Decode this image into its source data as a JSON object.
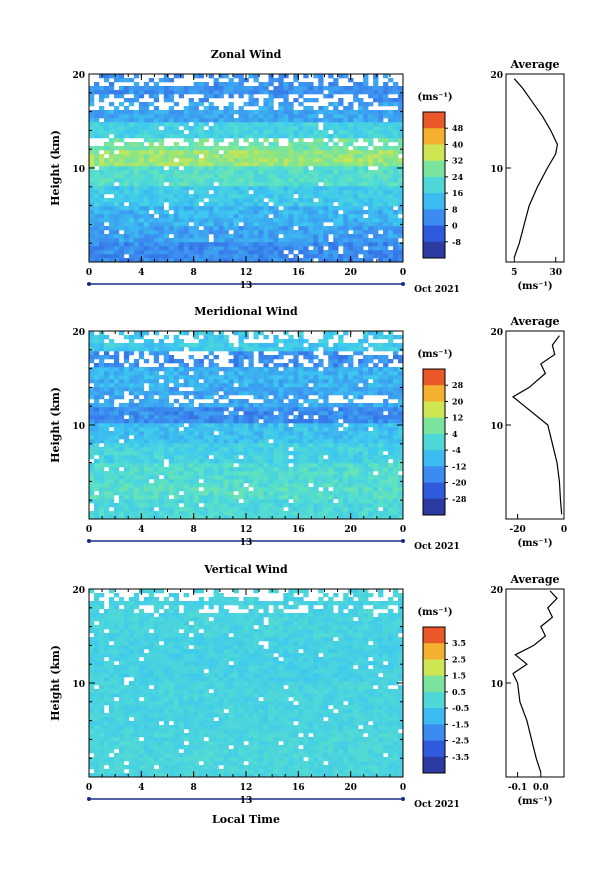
{
  "figure": {
    "x_label": "Local Time",
    "date_label": "Oct 2021",
    "day_label": "13",
    "y_label": "Height (km)",
    "unit_label": "(ms⁻¹)",
    "profile_title": "Average"
  },
  "chart_data": [
    {
      "type": "heatmap",
      "title": "Zonal Wind",
      "xlabel": "",
      "ylabel": "Height (km)",
      "xlim": [
        0,
        24
      ],
      "ylim": [
        0,
        20
      ],
      "x_ticks": [
        "0",
        "4",
        "8",
        "12",
        "16",
        "20",
        "0"
      ],
      "y_ticks": [
        "10",
        "20"
      ],
      "colorbar": {
        "unit": "(ms⁻¹)",
        "ticks": [
          "48",
          "40",
          "32",
          "24",
          "16",
          "8",
          "0",
          "-8"
        ],
        "range": [
          -12,
          52
        ]
      },
      "layers": [
        {
          "z": [
            0,
            2
          ],
          "value": 6
        },
        {
          "z": [
            2,
            4
          ],
          "value": 9
        },
        {
          "z": [
            4,
            6
          ],
          "value": 12
        },
        {
          "z": [
            6,
            8
          ],
          "value": 16
        },
        {
          "z": [
            8,
            10
          ],
          "value": 22
        },
        {
          "z": [
            10,
            12
          ],
          "value": 30
        },
        {
          "z": [
            12,
            13
          ],
          "value": 26
        },
        {
          "z": [
            13,
            15
          ],
          "value": 18
        },
        {
          "z": [
            15,
            17
          ],
          "value": 10
        },
        {
          "z": [
            17,
            20
          ],
          "value": 7
        }
      ],
      "profile": {
        "title": "Average",
        "xlabel": "(ms⁻¹)",
        "x_ticks": [
          "5",
          "30"
        ],
        "xlim": [
          0,
          35
        ],
        "points": [
          [
            5,
            0.5
          ],
          [
            8,
            2
          ],
          [
            11,
            4
          ],
          [
            14,
            6
          ],
          [
            19,
            8
          ],
          [
            25,
            10
          ],
          [
            30,
            11.5
          ],
          [
            31,
            12.5
          ],
          [
            27,
            14
          ],
          [
            22,
            15.5
          ],
          [
            16,
            17
          ],
          [
            10,
            18.5
          ],
          [
            5,
            19.5
          ]
        ]
      }
    },
    {
      "type": "heatmap",
      "title": "Meridional Wind",
      "xlabel": "",
      "ylabel": "Height (km)",
      "xlim": [
        0,
        24
      ],
      "ylim": [
        0,
        20
      ],
      "x_ticks": [
        "0",
        "4",
        "8",
        "12",
        "16",
        "20",
        "0"
      ],
      "y_ticks": [
        "10",
        "20"
      ],
      "colorbar": {
        "unit": "(ms⁻¹)",
        "ticks": [
          "28",
          "20",
          "12",
          "4",
          "-4",
          "-12",
          "-20",
          "-28"
        ],
        "range": [
          -32,
          32
        ]
      },
      "layers": [
        {
          "z": [
            0,
            2
          ],
          "value": 0
        },
        {
          "z": [
            2,
            4
          ],
          "value": 2
        },
        {
          "z": [
            4,
            6
          ],
          "value": 1
        },
        {
          "z": [
            6,
            8
          ],
          "value": -2
        },
        {
          "z": [
            8,
            10
          ],
          "value": -6
        },
        {
          "z": [
            10,
            12
          ],
          "value": -14
        },
        {
          "z": [
            12,
            14
          ],
          "value": -10
        },
        {
          "z": [
            14,
            16
          ],
          "value": -8
        },
        {
          "z": [
            16,
            18
          ],
          "value": -14
        },
        {
          "z": [
            18,
            20
          ],
          "value": -4
        }
      ],
      "profile": {
        "title": "Average",
        "xlabel": "(ms⁻¹)",
        "x_ticks": [
          "-20",
          "0"
        ],
        "xlim": [
          -25,
          0
        ],
        "points": [
          [
            -1,
            0.5
          ],
          [
            -1.5,
            2
          ],
          [
            -2,
            4
          ],
          [
            -3,
            6
          ],
          [
            -5,
            8
          ],
          [
            -7,
            10
          ],
          [
            -17,
            12
          ],
          [
            -22,
            13
          ],
          [
            -15,
            14
          ],
          [
            -8,
            15.5
          ],
          [
            -10,
            16.5
          ],
          [
            -4,
            17.5
          ],
          [
            -5,
            18.5
          ],
          [
            -2,
            19.5
          ]
        ]
      }
    },
    {
      "type": "heatmap",
      "title": "Vertical Wind",
      "xlabel": "Local Time",
      "ylabel": "Height (km)",
      "xlim": [
        0,
        24
      ],
      "ylim": [
        0,
        20
      ],
      "x_ticks": [
        "0",
        "4",
        "8",
        "12",
        "16",
        "20",
        "0"
      ],
      "y_ticks": [
        "10",
        "20"
      ],
      "colorbar": {
        "unit": "(ms⁻¹)",
        "ticks": [
          "3.5",
          "2.5",
          "1.5",
          "0.5",
          "-0.5",
          "-1.5",
          "-2.5",
          "-3.5"
        ],
        "range": [
          -4,
          4
        ]
      },
      "layers": [
        {
          "z": [
            0,
            5
          ],
          "value": -0.1
        },
        {
          "z": [
            5,
            10
          ],
          "value": -0.2
        },
        {
          "z": [
            10,
            15
          ],
          "value": -0.3
        },
        {
          "z": [
            15,
            20
          ],
          "value": -0.2
        }
      ],
      "profile": {
        "title": "Average",
        "xlabel": "(ms⁻¹)",
        "x_ticks": [
          "-0.1",
          "0.0"
        ],
        "xlim": [
          -0.15,
          0.1
        ],
        "points": [
          [
            0.0,
            0.5
          ],
          [
            -0.02,
            2
          ],
          [
            -0.04,
            4
          ],
          [
            -0.06,
            6
          ],
          [
            -0.09,
            8
          ],
          [
            -0.1,
            10
          ],
          [
            -0.12,
            11
          ],
          [
            -0.06,
            12
          ],
          [
            -0.11,
            13
          ],
          [
            -0.03,
            14
          ],
          [
            0.02,
            15
          ],
          [
            0.0,
            16
          ],
          [
            0.05,
            17
          ],
          [
            0.03,
            18
          ],
          [
            0.07,
            19
          ],
          [
            0.04,
            19.8
          ]
        ]
      }
    }
  ]
}
